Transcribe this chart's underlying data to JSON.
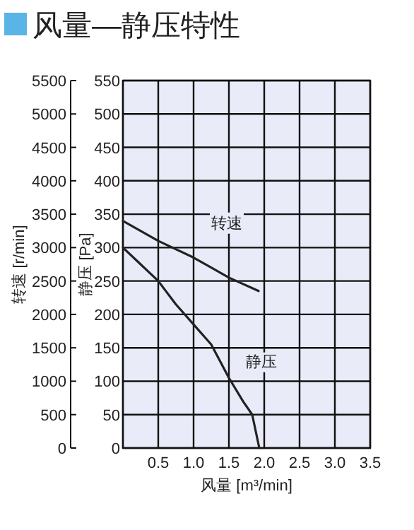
{
  "chart_data": {
    "type": "line",
    "title": "风量—静压特性",
    "xlabel": "风量 [m³/min]",
    "ylabel": "静压 [Pa]",
    "y2label": "转速 [r/min]",
    "xlim": [
      0,
      3.5
    ],
    "xticks": [
      {
        "value": 0,
        "label": null
      },
      0.5,
      {
        "value": 1,
        "label": "1.0"
      },
      1.5,
      {
        "value": 2,
        "label": "2.0"
      },
      2.5,
      {
        "value": 3,
        "label": "3.0"
      },
      3.5
    ],
    "ylim": [
      0,
      550
    ],
    "yticks": [
      0,
      50,
      100,
      150,
      200,
      250,
      300,
      350,
      400,
      450,
      500,
      550
    ],
    "y2lim": [
      0,
      5500
    ],
    "y2ticks": [
      0,
      500,
      1000,
      1500,
      2000,
      2500,
      3000,
      3500,
      4000,
      4500,
      5000,
      5500
    ],
    "grid": true,
    "series": [
      {
        "name": "转速",
        "color": "#222222",
        "axis": "y2",
        "x": [
          0,
          0.5,
          1.0,
          1.25,
          1.5,
          1.92
        ],
        "values": [
          3400,
          3100,
          2850,
          2700,
          2550,
          2350
        ]
      },
      {
        "name": "静压",
        "color": "#222222",
        "x": [
          0,
          0.2,
          0.5,
          0.75,
          1.0,
          1.25,
          1.5,
          1.7,
          1.83,
          1.93
        ],
        "values": [
          300,
          280,
          250,
          215,
          185,
          155,
          105,
          70,
          50,
          0
        ]
      }
    ]
  }
}
